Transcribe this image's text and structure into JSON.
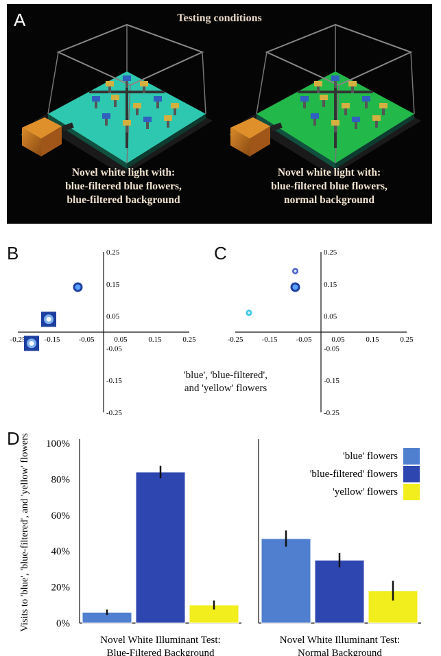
{
  "panel_a": {
    "letter": "A",
    "title": "Testing conditions",
    "left_caption": [
      "Novel white light with:",
      "blue-filtered blue flowers,",
      "blue-filtered background"
    ],
    "right_caption": [
      "Novel white light with:",
      "blue-filtered blue flowers,",
      "normal background"
    ],
    "colors": {
      "left_floor": "#2ec8b0",
      "right_floor": "#22b84a"
    }
  },
  "colors": {
    "blue": "#4f7fce",
    "blue_filtered": "#2e46b0",
    "yellow": "#f2ee1e"
  },
  "panel_labels": {
    "b": "B",
    "c": "C",
    "d": "D"
  },
  "between_label": [
    "'blue', 'blue-filtered',",
    "and 'yellow' flowers"
  ],
  "chart_data": [
    {
      "panel": "B",
      "type": "scatter",
      "xlim": [
        -0.25,
        0.25
      ],
      "ylim": [
        -0.25,
        0.25
      ],
      "xticks": [
        "-0.25",
        "-0.15",
        "-0.05",
        "0.05",
        "0.15",
        "0.25"
      ],
      "yticks": [
        "0.25",
        "0.15",
        "0.05",
        "-0.05",
        "-0.15",
        "-0.25"
      ],
      "points": [
        {
          "x": -0.075,
          "y": 0.14,
          "marker": "circle",
          "color": "#2e6fd0"
        },
        {
          "x": -0.16,
          "y": 0.04,
          "marker": "square",
          "color": "#2e6fd0"
        },
        {
          "x": -0.21,
          "y": -0.035,
          "marker": "square",
          "color": "#2e6fd0"
        }
      ]
    },
    {
      "panel": "C",
      "type": "scatter",
      "xlim": [
        -0.25,
        0.25
      ],
      "ylim": [
        -0.25,
        0.25
      ],
      "xticks": [
        "-0.25",
        "-0.15",
        "-0.05",
        "0.05",
        "0.15",
        "0.25"
      ],
      "yticks": [
        "0.25",
        "0.15",
        "0.05",
        "-0.05",
        "-0.15",
        "-0.25"
      ],
      "points": [
        {
          "x": -0.075,
          "y": 0.19,
          "marker": "dot",
          "color": "#4a5fd0"
        },
        {
          "x": -0.075,
          "y": 0.14,
          "marker": "circle",
          "color": "#2e6fd0"
        },
        {
          "x": -0.21,
          "y": 0.06,
          "marker": "dot",
          "color": "#36c8e8"
        }
      ]
    },
    {
      "panel": "D",
      "type": "bar",
      "ylabel": "Visits to 'blue', 'blue-filtered', and 'yellow' flowers",
      "ylim": [
        0,
        100
      ],
      "yticks": [
        "100%",
        "80%",
        "60%",
        "40%",
        "20%",
        "0%"
      ],
      "categories": [
        [
          "Novel White Illuminant Test:",
          "Blue-Filtered Background"
        ],
        [
          "Novel White Illuminant Test:",
          "Normal Background"
        ]
      ],
      "series": [
        {
          "name": "'blue' flowers",
          "values": [
            6,
            47
          ],
          "errors": [
            1.5,
            4.5
          ]
        },
        {
          "name": "'blue-filtered' flowers",
          "values": [
            84,
            35
          ],
          "errors": [
            3.5,
            4
          ]
        },
        {
          "name": "'yellow' flowers",
          "values": [
            10,
            18
          ],
          "errors": [
            2.5,
            5.5
          ]
        }
      ]
    }
  ]
}
